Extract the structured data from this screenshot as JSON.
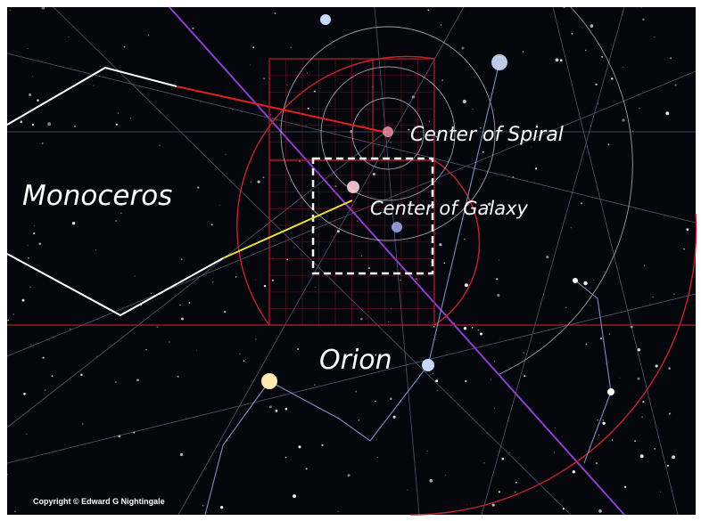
{
  "annotations": {
    "spiral": "Center of Spiral",
    "constellation_left": "Monoceros",
    "galaxy": "Center of Galaxy",
    "constellation_bottom": "Orion"
  },
  "copyright": "Copyright © Edward G Nightingale"
}
